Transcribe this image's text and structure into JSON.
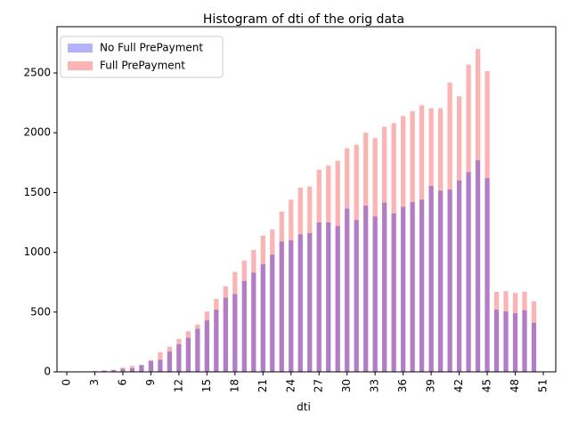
{
  "chart_data": {
    "type": "bar",
    "title": "Histogram of dti of the orig data",
    "x_label": "dti",
    "categories": [
      0,
      null,
      null,
      3,
      null,
      null,
      6,
      null,
      null,
      9,
      null,
      null,
      12,
      null,
      null,
      15,
      null,
      null,
      18,
      null,
      null,
      21,
      null,
      null,
      24,
      null,
      null,
      27,
      null,
      null,
      30,
      null,
      null,
      33,
      null,
      null,
      36,
      null,
      null,
      39,
      null,
      null,
      42,
      null,
      null,
      45,
      null,
      null,
      48,
      null,
      null,
      51
    ],
    "series": [
      {
        "name": "Full PrePayment",
        "color": "#ff0000",
        "values": [
          0,
          2,
          4,
          6,
          12,
          18,
          35,
          50,
          60,
          100,
          165,
          210,
          275,
          340,
          395,
          505,
          610,
          715,
          835,
          930,
          1020,
          1140,
          1190,
          1340,
          1440,
          1540,
          1550,
          1690,
          1725,
          1765,
          1870,
          1900,
          2000,
          1955,
          2050,
          2080,
          2140,
          2180,
          2230,
          2205,
          2205,
          2420,
          2305,
          2570,
          2700,
          2515,
          670,
          675,
          660,
          670,
          590,
          0
        ]
      },
      {
        "name": "No Full PrePayment",
        "color": "#0000ff",
        "values": [
          0,
          2,
          3,
          5,
          10,
          14,
          25,
          30,
          55,
          90,
          100,
          170,
          230,
          285,
          360,
          430,
          520,
          620,
          650,
          760,
          830,
          900,
          980,
          1090,
          1100,
          1150,
          1160,
          1250,
          1250,
          1220,
          1365,
          1270,
          1390,
          1300,
          1415,
          1325,
          1380,
          1420,
          1440,
          1555,
          1515,
          1525,
          1600,
          1670,
          1770,
          1620,
          520,
          505,
          490,
          515,
          410,
          0
        ]
      }
    ],
    "ylim": [
      0,
      2835
    ],
    "yticks": [
      0,
      500,
      1000,
      1500,
      2000,
      2500
    ],
    "legend": "upper left",
    "alpha": 0.3
  }
}
